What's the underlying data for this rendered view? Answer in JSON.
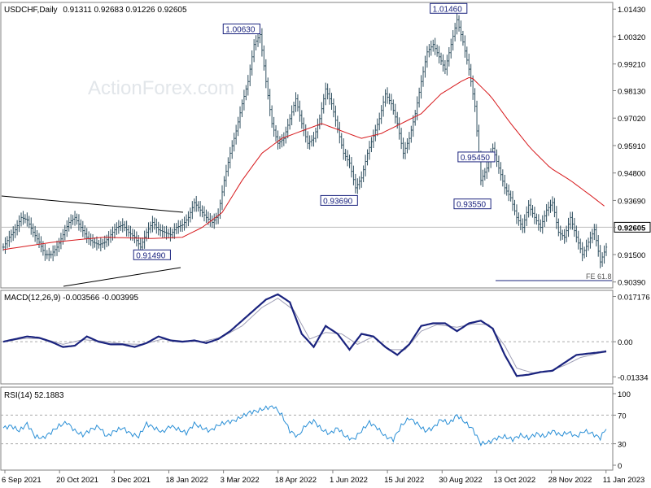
{
  "header": {
    "symbol": "USDCHF,Daily",
    "ohlc": "0.91311 0.92683 0.91226 0.92605"
  },
  "watermark": "ActionForex.com",
  "colors": {
    "bar": "#2f4f5f",
    "sma": "#d7191c",
    "macd": "#1a237e",
    "signal": "#9e9eb5",
    "rsi": "#2a8fd6",
    "level_box": "#1a237e",
    "price_tag_bg": "#ffffff"
  },
  "chart_data": [
    {
      "type": "line",
      "panel": "price",
      "ylim": [
        0.9015,
        1.017
      ],
      "y_ticks": [
        "1.01430",
        "1.00320",
        "0.99210",
        "0.98130",
        "0.97020",
        "0.95910",
        "0.94800",
        "0.93690",
        "0.92605",
        "0.91500",
        "0.90390"
      ],
      "y_tick_values": [
        1.0143,
        1.0032,
        0.9921,
        0.9813,
        0.9702,
        0.9591,
        0.948,
        0.9369,
        0.92605,
        0.915,
        0.9039
      ],
      "current_price": "0.92605",
      "current_value": 0.92605,
      "x_ticks": [
        "6 Sep 2021",
        "20 Oct 2021",
        "3 Dec 2021",
        "18 Jan 2022",
        "3 Mar 2022",
        "18 Apr 2022",
        "1 Jun 2022",
        "15 Jul 2022",
        "30 Aug 2022",
        "13 Oct 2022",
        "28 Nov 2022",
        "11 Jan 2023"
      ],
      "price_series": [
        [
          0,
          0.918
        ],
        [
          3,
          0.922
        ],
        [
          6,
          0.925
        ],
        [
          9,
          0.93
        ],
        [
          12,
          0.929
        ],
        [
          15,
          0.924
        ],
        [
          18,
          0.92
        ],
        [
          21,
          0.915
        ],
        [
          24,
          0.915
        ],
        [
          27,
          0.918
        ],
        [
          30,
          0.923
        ],
        [
          33,
          0.928
        ],
        [
          36,
          0.93
        ],
        [
          39,
          0.926
        ],
        [
          42,
          0.922
        ],
        [
          45,
          0.92
        ],
        [
          48,
          0.919
        ],
        [
          51,
          0.92
        ],
        [
          54,
          0.923
        ],
        [
          57,
          0.926
        ],
        [
          60,
          0.927
        ],
        [
          63,
          0.924
        ],
        [
          66,
          0.922
        ],
        [
          69,
          0.918
        ],
        [
          72,
          0.924
        ],
        [
          75,
          0.928
        ],
        [
          78,
          0.925
        ],
        [
          81,
          0.924
        ],
        [
          84,
          0.923
        ],
        [
          87,
          0.926
        ],
        [
          90,
          0.927
        ],
        [
          93,
          0.93
        ],
        [
          96,
          0.936
        ],
        [
          99,
          0.933
        ],
        [
          102,
          0.93
        ],
        [
          105,
          0.928
        ],
        [
          108,
          0.931
        ],
        [
          111,
          0.945
        ],
        [
          114,
          0.956
        ],
        [
          117,
          0.965
        ],
        [
          120,
          0.976
        ],
        [
          123,
          0.985
        ],
        [
          126,
          1.0
        ],
        [
          129,
          1.004
        ],
        [
          132,
          0.985
        ],
        [
          135,
          0.968
        ],
        [
          138,
          0.96
        ],
        [
          141,
          0.962
        ],
        [
          144,
          0.97
        ],
        [
          147,
          0.978
        ],
        [
          150,
          0.968
        ],
        [
          153,
          0.96
        ],
        [
          156,
          0.962
        ],
        [
          159,
          0.97
        ],
        [
          162,
          0.982
        ],
        [
          165,
          0.976
        ],
        [
          168,
          0.966
        ],
        [
          171,
          0.956
        ],
        [
          174,
          0.952
        ],
        [
          177,
          0.942
        ],
        [
          180,
          0.946
        ],
        [
          183,
          0.956
        ],
        [
          186,
          0.963
        ],
        [
          189,
          0.97
        ],
        [
          192,
          0.98
        ],
        [
          195,
          0.976
        ],
        [
          198,
          0.968
        ],
        [
          201,
          0.956
        ],
        [
          204,
          0.962
        ],
        [
          207,
          0.972
        ],
        [
          210,
          0.985
        ],
        [
          213,
          0.997
        ],
        [
          216,
          1.0
        ],
        [
          219,
          0.995
        ],
        [
          222,
          0.99
        ],
        [
          225,
          1.0
        ],
        [
          228,
          1.01
        ],
        [
          231,
          1.001
        ],
        [
          234,
          0.99
        ],
        [
          237,
          0.975
        ],
        [
          240,
          0.945
        ],
        [
          243,
          0.95
        ],
        [
          246,
          0.958
        ],
        [
          249,
          0.95
        ],
        [
          252,
          0.942
        ],
        [
          255,
          0.938
        ],
        [
          258,
          0.93
        ],
        [
          261,
          0.926
        ],
        [
          264,
          0.935
        ],
        [
          267,
          0.93
        ],
        [
          270,
          0.926
        ],
        [
          273,
          0.933
        ],
        [
          276,
          0.936
        ],
        [
          279,
          0.924
        ],
        [
          282,
          0.922
        ],
        [
          285,
          0.93
        ],
        [
          288,
          0.922
        ],
        [
          291,
          0.915
        ],
        [
          294,
          0.92
        ],
        [
          297,
          0.925
        ],
        [
          300,
          0.912
        ],
        [
          303,
          0.918
        ]
      ],
      "sma_series": [
        [
          0,
          0.917
        ],
        [
          25,
          0.92
        ],
        [
          50,
          0.922
        ],
        [
          75,
          0.9215
        ],
        [
          90,
          0.922
        ],
        [
          100,
          0.926
        ],
        [
          110,
          0.932
        ],
        [
          120,
          0.945
        ],
        [
          130,
          0.956
        ],
        [
          140,
          0.962
        ],
        [
          150,
          0.965
        ],
        [
          160,
          0.968
        ],
        [
          170,
          0.965
        ],
        [
          180,
          0.962
        ],
        [
          190,
          0.964
        ],
        [
          200,
          0.968
        ],
        [
          210,
          0.972
        ],
        [
          220,
          0.98
        ],
        [
          230,
          0.985
        ],
        [
          235,
          0.987
        ],
        [
          245,
          0.979
        ],
        [
          255,
          0.968
        ],
        [
          265,
          0.958
        ],
        [
          275,
          0.95
        ],
        [
          285,
          0.945
        ],
        [
          295,
          0.939
        ],
        [
          303,
          0.934
        ]
      ],
      "level_labels": [
        {
          "text": "1.01460",
          "x": 233,
          "y": 1.0146
        },
        {
          "text": "1.00630",
          "x": 129,
          "y": 1.0063
        },
        {
          "text": "0.95450",
          "x": 247,
          "y": 0.9545
        },
        {
          "text": "0.93690",
          "x": 178,
          "y": 0.9369
        },
        {
          "text": "0.93550",
          "x": 245,
          "y": 0.9355
        },
        {
          "text": "0.91490",
          "x": 84,
          "y": 0.9149
        }
      ],
      "annotation": "FE 61.8"
    },
    {
      "type": "line",
      "panel": "macd",
      "label": "MACD(12,26,9) -0.003566 -0.003995",
      "ylim": [
        -0.016,
        0.0195
      ],
      "y_ticks": [
        "0.017176",
        "0.00",
        "-0.01334"
      ],
      "y_tick_values": [
        0.017176,
        0.0,
        -0.01334
      ],
      "macd_series": [
        [
          0,
          0.0
        ],
        [
          6,
          0.001
        ],
        [
          12,
          0.002
        ],
        [
          18,
          0.0015
        ],
        [
          24,
          0.0
        ],
        [
          30,
          -0.002
        ],
        [
          36,
          -0.0015
        ],
        [
          42,
          0.002
        ],
        [
          48,
          0.0
        ],
        [
          54,
          -0.001
        ],
        [
          60,
          -0.001
        ],
        [
          66,
          -0.002
        ],
        [
          72,
          -0.0005
        ],
        [
          78,
          0.002
        ],
        [
          84,
          0.0005
        ],
        [
          90,
          0.0
        ],
        [
          96,
          0.0005
        ],
        [
          102,
          -0.0005
        ],
        [
          108,
          0.001
        ],
        [
          114,
          0.004
        ],
        [
          120,
          0.008
        ],
        [
          126,
          0.012
        ],
        [
          132,
          0.016
        ],
        [
          138,
          0.018
        ],
        [
          144,
          0.015
        ],
        [
          150,
          0.003
        ],
        [
          156,
          -0.002
        ],
        [
          162,
          0.006
        ],
        [
          168,
          0.003
        ],
        [
          174,
          -0.003
        ],
        [
          180,
          0.003
        ],
        [
          186,
          0.002
        ],
        [
          192,
          -0.002
        ],
        [
          198,
          -0.005
        ],
        [
          204,
          -0.001
        ],
        [
          210,
          0.006
        ],
        [
          216,
          0.007
        ],
        [
          222,
          0.007
        ],
        [
          228,
          0.004
        ],
        [
          234,
          0.007
        ],
        [
          240,
          0.008
        ],
        [
          246,
          0.005
        ],
        [
          252,
          -0.005
        ],
        [
          258,
          -0.013
        ],
        [
          264,
          -0.0125
        ],
        [
          270,
          -0.0115
        ],
        [
          276,
          -0.011
        ],
        [
          282,
          -0.008
        ],
        [
          288,
          -0.005
        ],
        [
          294,
          -0.0045
        ],
        [
          300,
          -0.004
        ],
        [
          303,
          -0.0036
        ]
      ],
      "signal_series": [
        [
          0,
          0.0
        ],
        [
          10,
          0.0012
        ],
        [
          20,
          0.0012
        ],
        [
          30,
          -0.001
        ],
        [
          40,
          0.0008
        ],
        [
          50,
          0.0002
        ],
        [
          60,
          -0.0008
        ],
        [
          70,
          -0.001
        ],
        [
          80,
          0.001
        ],
        [
          90,
          0.0003
        ],
        [
          100,
          0.0
        ],
        [
          110,
          0.0018
        ],
        [
          120,
          0.006
        ],
        [
          130,
          0.013
        ],
        [
          138,
          0.0165
        ],
        [
          146,
          0.012
        ],
        [
          154,
          0.001
        ],
        [
          162,
          0.0035
        ],
        [
          170,
          0.003
        ],
        [
          178,
          -0.001
        ],
        [
          186,
          0.002
        ],
        [
          194,
          -0.003
        ],
        [
          202,
          -0.003
        ],
        [
          210,
          0.004
        ],
        [
          218,
          0.0065
        ],
        [
          228,
          0.0055
        ],
        [
          236,
          0.0068
        ],
        [
          244,
          0.0065
        ],
        [
          252,
          -0.0015
        ],
        [
          258,
          -0.01
        ],
        [
          266,
          -0.0118
        ],
        [
          274,
          -0.0112
        ],
        [
          282,
          -0.009
        ],
        [
          290,
          -0.006
        ],
        [
          300,
          -0.0042
        ],
        [
          303,
          -0.004
        ]
      ]
    },
    {
      "type": "line",
      "panel": "rsi",
      "label": "RSI(14) 52.1883",
      "ylim": [
        0,
        100
      ],
      "y_ticks": [
        "100",
        "70",
        "30",
        "0"
      ],
      "y_tick_values": [
        100,
        70,
        30,
        0
      ],
      "rsi_series": [
        [
          0,
          52
        ],
        [
          4,
          55
        ],
        [
          8,
          48
        ],
        [
          12,
          58
        ],
        [
          16,
          40
        ],
        [
          20,
          38
        ],
        [
          24,
          46
        ],
        [
          28,
          55
        ],
        [
          32,
          60
        ],
        [
          36,
          48
        ],
        [
          40,
          42
        ],
        [
          44,
          50
        ],
        [
          48,
          54
        ],
        [
          52,
          40
        ],
        [
          56,
          48
        ],
        [
          60,
          52
        ],
        [
          64,
          44
        ],
        [
          68,
          40
        ],
        [
          72,
          58
        ],
        [
          76,
          52
        ],
        [
          80,
          46
        ],
        [
          84,
          55
        ],
        [
          88,
          50
        ],
        [
          92,
          45
        ],
        [
          96,
          58
        ],
        [
          100,
          52
        ],
        [
          104,
          48
        ],
        [
          108,
          56
        ],
        [
          112,
          60
        ],
        [
          116,
          62
        ],
        [
          120,
          68
        ],
        [
          124,
          74
        ],
        [
          128,
          76
        ],
        [
          132,
          80
        ],
        [
          136,
          82
        ],
        [
          140,
          70
        ],
        [
          144,
          48
        ],
        [
          148,
          40
        ],
        [
          152,
          56
        ],
        [
          156,
          62
        ],
        [
          160,
          50
        ],
        [
          164,
          44
        ],
        [
          168,
          52
        ],
        [
          172,
          40
        ],
        [
          176,
          36
        ],
        [
          180,
          48
        ],
        [
          184,
          60
        ],
        [
          188,
          52
        ],
        [
          192,
          40
        ],
        [
          196,
          36
        ],
        [
          200,
          55
        ],
        [
          204,
          66
        ],
        [
          208,
          58
        ],
        [
          212,
          48
        ],
        [
          216,
          52
        ],
        [
          220,
          64
        ],
        [
          224,
          58
        ],
        [
          228,
          70
        ],
        [
          232,
          60
        ],
        [
          236,
          50
        ],
        [
          240,
          30
        ],
        [
          244,
          32
        ],
        [
          248,
          38
        ],
        [
          252,
          40
        ],
        [
          256,
          36
        ],
        [
          260,
          42
        ],
        [
          264,
          38
        ],
        [
          268,
          44
        ],
        [
          272,
          40
        ],
        [
          276,
          48
        ],
        [
          280,
          42
        ],
        [
          284,
          46
        ],
        [
          288,
          40
        ],
        [
          292,
          48
        ],
        [
          296,
          44
        ],
        [
          300,
          38
        ],
        [
          303,
          52
        ]
      ]
    }
  ]
}
